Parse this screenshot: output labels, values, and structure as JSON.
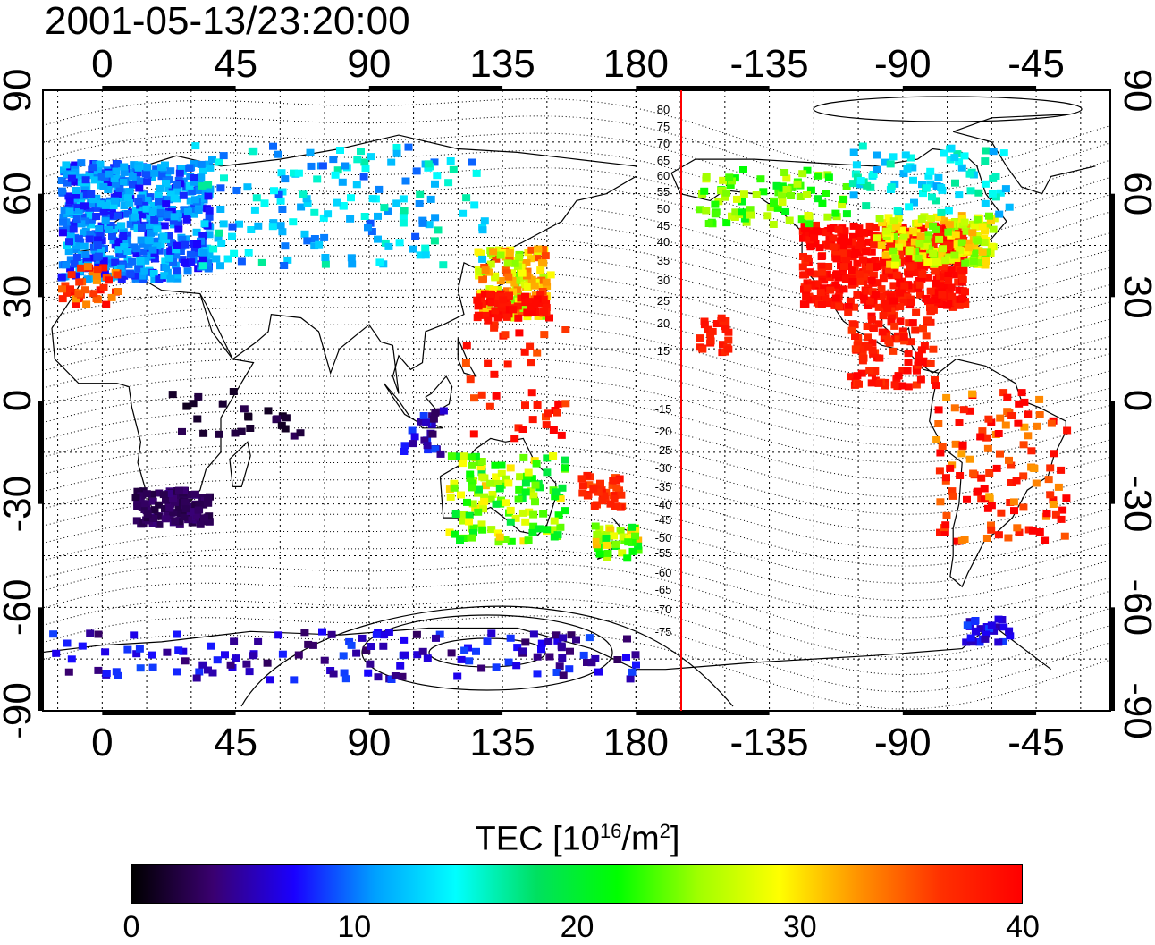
{
  "timestamp": "2001-05-13/23:20:00",
  "map": {
    "top_lon_labels": [
      "0",
      "45",
      "90",
      "135",
      "180",
      "-135",
      "-90",
      "-45"
    ],
    "bottom_lon_labels": [
      "0",
      "45",
      "90",
      "135",
      "180",
      "-135",
      "-90",
      "-45"
    ],
    "left_lat_labels": [
      "90",
      "60",
      "30",
      "0",
      "-30",
      "-60",
      "-90"
    ],
    "right_lat_labels": [
      "90",
      "60",
      "30",
      "0",
      "-30",
      "-60",
      "-90"
    ],
    "magnetic_lat_labels": [
      "80",
      "75",
      "70",
      "65",
      "60",
      "55",
      "50",
      "45",
      "40",
      "35",
      "30",
      "25",
      "20",
      "15",
      "-15",
      "-20",
      "-25",
      "-30",
      "-35",
      "-40",
      "-45",
      "-50",
      "-55",
      "-60",
      "-65",
      "-70",
      "-75"
    ],
    "terminator_color": "#ff0000"
  },
  "colorbar": {
    "title_prefix": "TEC  [10",
    "title_exp": "16",
    "title_mid": "/m",
    "title_exp2": "2",
    "title_suffix": "]",
    "ticks": [
      "0",
      "10",
      "20",
      "30",
      "40"
    ],
    "min": 0,
    "max": 40,
    "colors": [
      "#000000",
      "#3a0070",
      "#1a00ff",
      "#00a0ff",
      "#00ffff",
      "#00e060",
      "#00ff00",
      "#a0ff00",
      "#ffff00",
      "#ff9000",
      "#ff3000",
      "#ff0000"
    ]
  },
  "tec_regions": [
    {
      "name": "north-america",
      "value": 39
    },
    {
      "name": "east-asia",
      "value": 30
    },
    {
      "name": "europe",
      "value": 10
    },
    {
      "name": "south-america",
      "value": 38
    },
    {
      "name": "australia",
      "value": 24
    },
    {
      "name": "southern-africa",
      "value": 3
    },
    {
      "name": "antarctica",
      "value": 6
    }
  ]
}
